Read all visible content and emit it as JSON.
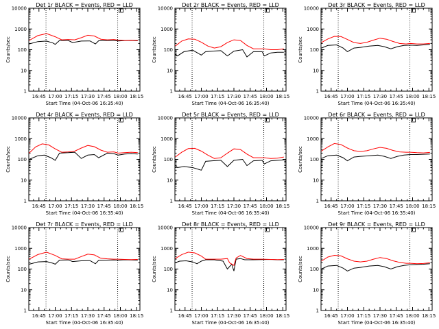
{
  "chart_data": {
    "type": "line",
    "ylabel": "Counts/sec",
    "xlabel": "Start Time (04-Oct-06 16:35:40)",
    "yscale": "log",
    "ylim": [
      1,
      10000
    ],
    "y_ticks": [
      "1",
      "10",
      "100",
      "1000",
      "10000"
    ],
    "x_ticks": [
      "16:45",
      "17:00",
      "17:15",
      "17:30",
      "17:45",
      "18:00",
      "18:15"
    ],
    "x_ticks_minutes": [
      645,
      660,
      675,
      690,
      705,
      720,
      735
    ],
    "xlim_minutes": [
      635.67,
      738
    ],
    "vlines_minutes": [
      651.5,
      717.5
    ],
    "colors": {
      "events": "#000000",
      "lld": "#ff0000"
    },
    "panels": [
      {
        "title": "Det 1r BLACK = Events, RED = LLD",
        "series": [
          {
            "name": "Events",
            "x": [
              636,
              644,
              652,
              658,
              660,
              664,
              672,
              676,
              684,
              692,
              697,
              700,
              708,
              714,
              718,
              724,
              730,
              736
            ],
            "values": [
              190,
              245,
              260,
              210,
              180,
              280,
              280,
              220,
              260,
              265,
              190,
              270,
              280,
              280,
              265,
              275,
              280,
              270
            ]
          },
          {
            "name": "LLD",
            "x": [
              636,
              644,
              652,
              660,
              666,
              672,
              678,
              684,
              690,
              696,
              702,
              708,
              714,
              718,
              724,
              730,
              736
            ],
            "values": [
              280,
              480,
              600,
              420,
              300,
              310,
              300,
              380,
              500,
              460,
              320,
              300,
              310,
              290,
              280,
              285,
              280
            ]
          }
        ]
      },
      {
        "title": "Det 2r BLACK = Events, RED = LLD",
        "series": [
          {
            "name": "Events",
            "x": [
              636,
              638,
              644,
              652,
              660,
              664,
              670,
              678,
              684,
              690,
              698,
              702,
              708,
              716,
              718,
              724,
              730,
              736
            ],
            "values": [
              60,
              50,
              80,
              95,
              55,
              80,
              85,
              90,
              50,
              85,
              100,
              45,
              80,
              80,
              50,
              70,
              75,
              75
            ]
          },
          {
            "name": "LLD",
            "x": [
              636,
              642,
              648,
              654,
              660,
              666,
              672,
              678,
              684,
              690,
              696,
              702,
              708,
              714,
              718,
              724,
              730,
              736
            ],
            "values": [
              150,
              260,
              330,
              320,
              230,
              150,
              120,
              140,
              220,
              300,
              280,
              160,
              110,
              110,
              110,
              100,
              100,
              110
            ]
          }
        ]
      },
      {
        "title": "Det 3r BLACK = Events, RED = LLD",
        "series": [
          {
            "name": "Events",
            "x": [
              636,
              642,
              650,
              656,
              660,
              666,
              672,
              680,
              688,
              694,
              700,
              706,
              712,
              718,
              724,
              730,
              736
            ],
            "values": [
              120,
              160,
              170,
              120,
              80,
              120,
              130,
              150,
              160,
              140,
              110,
              140,
              160,
              165,
              160,
              170,
              180
            ]
          },
          {
            "name": "LLD",
            "x": [
              636,
              642,
              648,
              654,
              660,
              666,
              672,
              678,
              684,
              690,
              696,
              702,
              708,
              714,
              718,
              724,
              730,
              736
            ],
            "values": [
              220,
              330,
              440,
              430,
              310,
              220,
              200,
              230,
              290,
              360,
              320,
              250,
              200,
              190,
              200,
              190,
              190,
              200
            ]
          }
        ]
      },
      {
        "title": "Det 4r BLACK = Events, RED = LLD",
        "series": [
          {
            "name": "Events",
            "x": [
              636,
              644,
              650,
              656,
              660,
              664,
              672,
              678,
              684,
              690,
              696,
              700,
              708,
              714,
              718,
              724,
              730,
              736
            ],
            "values": [
              100,
              150,
              160,
              120,
              90,
              200,
              210,
              220,
              110,
              160,
              170,
              120,
              200,
              190,
              160,
              180,
              190,
              180
            ]
          },
          {
            "name": "LLD",
            "x": [
              636,
              642,
              648,
              654,
              660,
              666,
              672,
              678,
              684,
              690,
              696,
              702,
              708,
              714,
              718,
              724,
              730,
              736
            ],
            "values": [
              200,
              400,
              560,
              500,
              320,
              220,
              230,
              250,
              350,
              470,
              410,
              280,
              220,
              230,
              200,
              210,
              220,
              210
            ]
          }
        ]
      },
      {
        "title": "Det 5r BLACK = Events, RED = LLD",
        "series": [
          {
            "name": "Events",
            "x": [
              636,
              638,
              644,
              652,
              660,
              664,
              670,
              678,
              684,
              690,
              698,
              702,
              708,
              716,
              718,
              724,
              730,
              736
            ],
            "values": [
              50,
              40,
              45,
              40,
              30,
              80,
              85,
              90,
              45,
              90,
              100,
              50,
              85,
              90,
              60,
              85,
              90,
              95
            ]
          },
          {
            "name": "LLD",
            "x": [
              636,
              642,
              648,
              654,
              660,
              666,
              672,
              678,
              684,
              690,
              696,
              702,
              708,
              714,
              718,
              724,
              730,
              736
            ],
            "values": [
              130,
              220,
              330,
              340,
              250,
              160,
              110,
              120,
              200,
              320,
              300,
              180,
              120,
              120,
              120,
              110,
              115,
              130
            ]
          }
        ]
      },
      {
        "title": "Det 6r BLACK = Events, RED = LLD",
        "series": [
          {
            "name": "Events",
            "x": [
              636,
              642,
              650,
              656,
              660,
              666,
              672,
              680,
              688,
              694,
              700,
              706,
              712,
              718,
              724,
              730,
              736
            ],
            "values": [
              110,
              150,
              160,
              120,
              85,
              130,
              140,
              150,
              160,
              140,
              110,
              140,
              160,
              170,
              170,
              175,
              180
            ]
          },
          {
            "name": "LLD",
            "x": [
              636,
              642,
              648,
              654,
              660,
              666,
              672,
              678,
              684,
              690,
              696,
              702,
              708,
              714,
              718,
              724,
              730,
              736
            ],
            "values": [
              250,
              400,
              580,
              520,
              350,
              260,
              240,
              260,
              320,
              380,
              340,
              270,
              230,
              220,
              220,
              210,
              205,
              215
            ]
          }
        ]
      },
      {
        "title": "Det 7r BLACK = Events, RED = LLD",
        "series": [
          {
            "name": "Events",
            "x": [
              636,
              644,
              652,
              658,
              660,
              664,
              672,
              676,
              684,
              692,
              697,
              700,
              708,
              714,
              718,
              724,
              730,
              736
            ],
            "values": [
              170,
              220,
              230,
              190,
              170,
              270,
              275,
              230,
              250,
              255,
              180,
              260,
              270,
              275,
              270,
              280,
              275,
              270
            ]
          },
          {
            "name": "LLD",
            "x": [
              636,
              644,
              652,
              660,
              666,
              672,
              678,
              684,
              690,
              696,
              702,
              708,
              714,
              718,
              724,
              730,
              736
            ],
            "values": [
              300,
              500,
              650,
              450,
              310,
              300,
              300,
              400,
              520,
              480,
              330,
              310,
              300,
              300,
              290,
              285,
              290
            ]
          }
        ]
      },
      {
        "title": "Det 8r BLACK = Events, RED = LLD",
        "series": [
          {
            "name": "Events",
            "x": [
              636,
              640,
              646,
              652,
              656,
              660,
              664,
              672,
              680,
              684,
              688,
              690,
              692,
              696,
              700,
              708,
              716,
              724,
              730,
              736
            ],
            "values": [
              200,
              240,
              250,
              220,
              180,
              240,
              280,
              280,
              240,
              100,
              170,
              80,
              300,
              320,
              280,
              280,
              285,
              290,
              280,
              280
            ]
          },
          {
            "name": "LLD",
            "x": [
              636,
              642,
              648,
              654,
              660,
              664,
              670,
              678,
              684,
              686,
              690,
              692,
              696,
              702,
              708,
              716,
              724,
              730,
              736
            ],
            "values": [
              320,
              500,
              650,
              600,
              420,
              300,
              300,
              300,
              320,
              200,
              150,
              340,
              450,
              320,
              300,
              300,
              290,
              285,
              290
            ]
          }
        ]
      },
      {
        "title": "Det 9r BLACK = Events, RED = LLD",
        "series": [
          {
            "name": "Events",
            "x": [
              636,
              642,
              650,
              656,
              660,
              666,
              672,
              680,
              688,
              694,
              700,
              706,
              712,
              718,
              724,
              730,
              736
            ],
            "values": [
              100,
              140,
              150,
              110,
              80,
              110,
              120,
              140,
              150,
              130,
              100,
              130,
              150,
              160,
              165,
              170,
              180
            ]
          },
          {
            "name": "LLD",
            "x": [
              636,
              642,
              648,
              654,
              660,
              666,
              672,
              678,
              684,
              690,
              696,
              702,
              708,
              714,
              718,
              724,
              730,
              736
            ],
            "values": [
              240,
              380,
              460,
              430,
              310,
              240,
              220,
              240,
              300,
              360,
              320,
              250,
              210,
              190,
              190,
              180,
              185,
              200
            ]
          }
        ]
      }
    ]
  }
}
